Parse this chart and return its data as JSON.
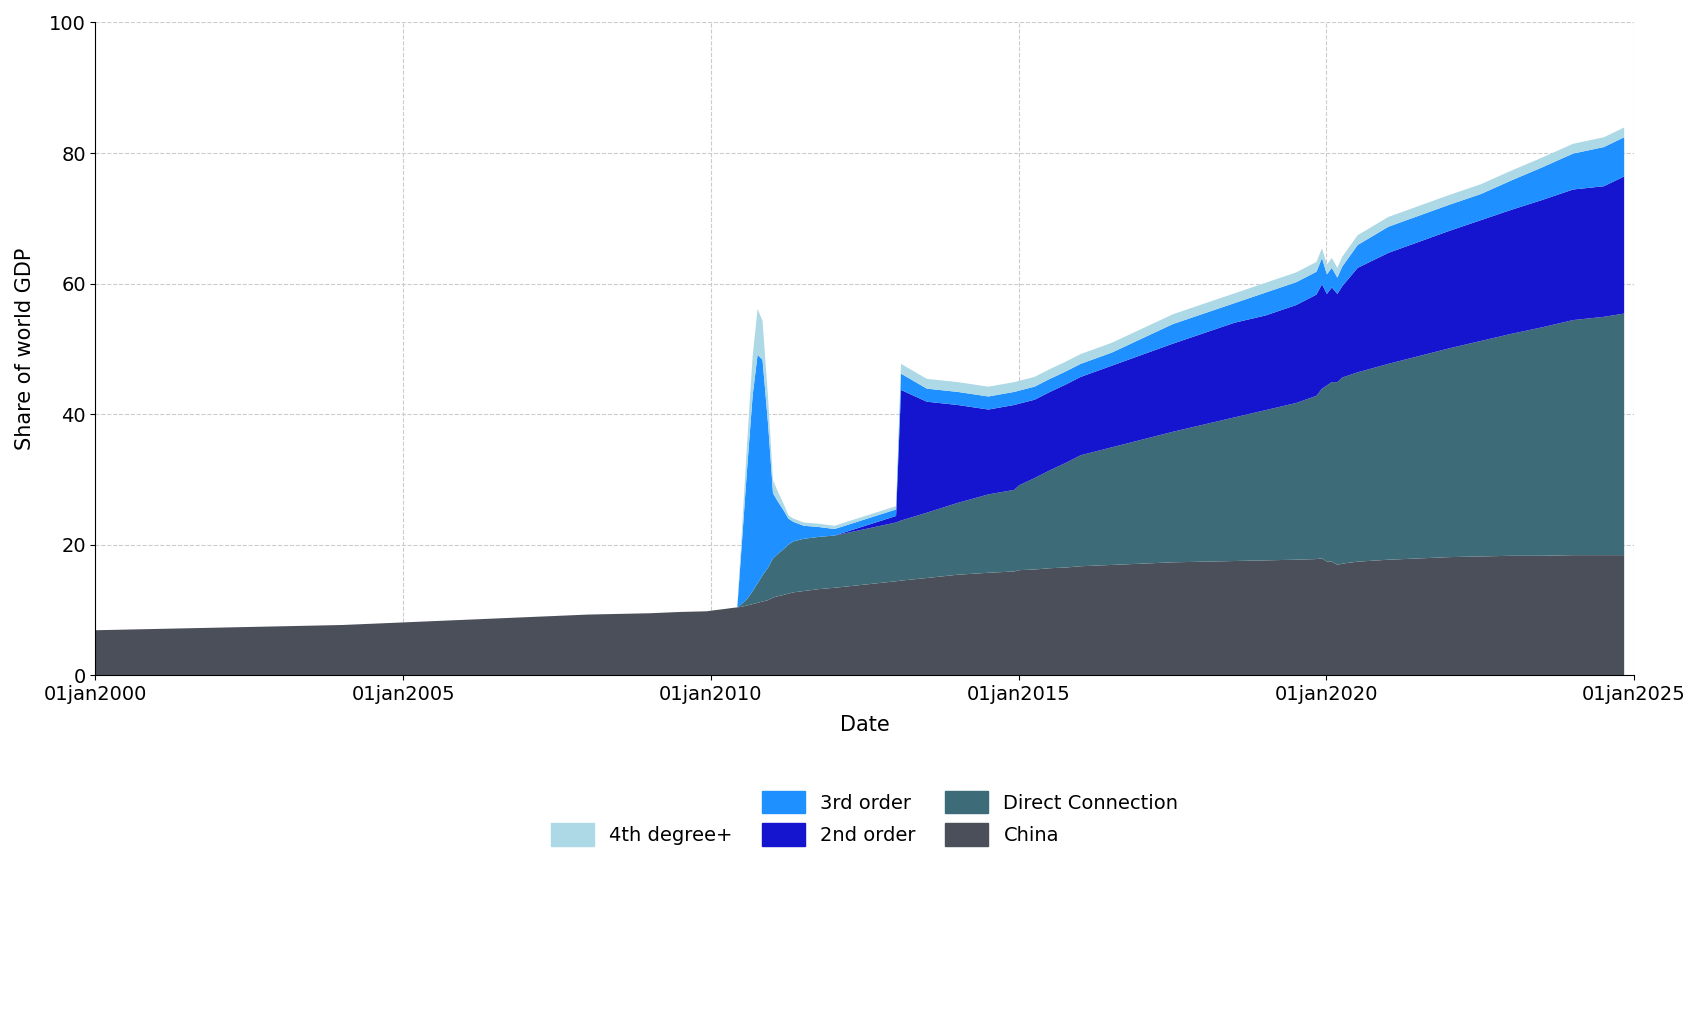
{
  "xlabel": "Date",
  "ylabel": "Share of world GDP",
  "ylim": [
    0,
    100
  ],
  "yticks": [
    0,
    20,
    40,
    60,
    80,
    100
  ],
  "colors": {
    "china": "#4b4f5a",
    "direct": "#3d6b78",
    "second": "#1515d0",
    "third": "#1e90ff",
    "fourth": "#add8e6"
  },
  "dates": [
    1999.9,
    2000.0,
    2000.5,
    2001.0,
    2001.5,
    2002.0,
    2002.5,
    2003.0,
    2003.5,
    2004.0,
    2004.5,
    2005.0,
    2005.5,
    2006.0,
    2006.5,
    2007.0,
    2007.5,
    2008.0,
    2008.5,
    2009.0,
    2009.5,
    2009.92,
    2010.0,
    2010.08,
    2010.17,
    2010.25,
    2010.33,
    2010.42,
    2010.5,
    2010.58,
    2010.67,
    2010.75,
    2010.83,
    2010.92,
    2011.0,
    2011.08,
    2011.17,
    2011.25,
    2011.33,
    2011.5,
    2011.75,
    2012.0,
    2012.5,
    2013.0,
    2013.08,
    2013.5,
    2014.0,
    2014.5,
    2014.92,
    2015.0,
    2015.25,
    2015.5,
    2015.75,
    2016.0,
    2016.5,
    2017.0,
    2017.5,
    2018.0,
    2018.5,
    2019.0,
    2019.5,
    2019.83,
    2019.92,
    2020.0,
    2020.08,
    2020.17,
    2020.25,
    2020.5,
    2021.0,
    2021.5,
    2022.0,
    2022.5,
    2023.0,
    2023.5,
    2024.0,
    2024.5,
    2024.83
  ],
  "china": [
    7.0,
    7.0,
    7.1,
    7.2,
    7.3,
    7.4,
    7.5,
    7.6,
    7.7,
    7.8,
    8.0,
    8.2,
    8.4,
    8.6,
    8.8,
    9.0,
    9.2,
    9.4,
    9.5,
    9.6,
    9.8,
    9.9,
    10.0,
    10.1,
    10.2,
    10.3,
    10.4,
    10.5,
    10.6,
    10.8,
    11.0,
    11.2,
    11.4,
    11.6,
    12.0,
    12.2,
    12.4,
    12.6,
    12.8,
    13.0,
    13.3,
    13.5,
    14.0,
    14.5,
    14.6,
    15.0,
    15.5,
    15.8,
    16.0,
    16.2,
    16.3,
    16.5,
    16.6,
    16.8,
    17.0,
    17.2,
    17.4,
    17.5,
    17.6,
    17.7,
    17.8,
    17.9,
    18.0,
    17.5,
    17.5,
    17.0,
    17.2,
    17.5,
    17.8,
    18.0,
    18.2,
    18.3,
    18.4,
    18.4,
    18.5,
    18.5,
    18.5
  ],
  "direct": [
    0.0,
    0.0,
    0.0,
    0.0,
    0.0,
    0.0,
    0.0,
    0.0,
    0.0,
    0.0,
    0.0,
    0.0,
    0.0,
    0.0,
    0.0,
    0.0,
    0.0,
    0.0,
    0.0,
    0.0,
    0.0,
    0.0,
    0.0,
    0.0,
    0.0,
    0.0,
    0.0,
    0.0,
    0.5,
    1.0,
    2.0,
    3.0,
    4.0,
    5.0,
    6.0,
    6.5,
    7.0,
    7.5,
    7.8,
    8.0,
    8.0,
    8.0,
    8.5,
    9.0,
    9.2,
    10.0,
    11.0,
    12.0,
    12.5,
    13.0,
    14.0,
    15.0,
    16.0,
    17.0,
    18.0,
    19.0,
    20.0,
    21.0,
    22.0,
    23.0,
    24.0,
    25.0,
    26.0,
    27.0,
    27.5,
    28.0,
    28.5,
    29.0,
    30.0,
    31.0,
    32.0,
    33.0,
    34.0,
    35.0,
    36.0,
    36.5,
    37.0
  ],
  "second": [
    0.0,
    0.0,
    0.0,
    0.0,
    0.0,
    0.0,
    0.0,
    0.0,
    0.0,
    0.0,
    0.0,
    0.0,
    0.0,
    0.0,
    0.0,
    0.0,
    0.0,
    0.0,
    0.0,
    0.0,
    0.0,
    0.0,
    0.0,
    0.0,
    0.0,
    0.0,
    0.0,
    0.0,
    0.0,
    0.0,
    0.0,
    0.0,
    0.0,
    0.0,
    0.0,
    0.0,
    0.0,
    0.0,
    0.0,
    0.0,
    0.0,
    0.0,
    0.5,
    1.0,
    20.0,
    17.0,
    15.0,
    13.0,
    13.0,
    12.5,
    12.0,
    12.0,
    12.0,
    12.0,
    12.5,
    13.0,
    13.5,
    14.0,
    14.5,
    14.5,
    15.0,
    15.5,
    16.0,
    14.0,
    14.5,
    13.5,
    14.0,
    16.0,
    17.0,
    17.5,
    18.0,
    18.5,
    19.0,
    19.5,
    20.0,
    20.0,
    21.0
  ],
  "third": [
    0.0,
    0.0,
    0.0,
    0.0,
    0.0,
    0.0,
    0.0,
    0.0,
    0.0,
    0.0,
    0.0,
    0.0,
    0.0,
    0.0,
    0.0,
    0.0,
    0.0,
    0.0,
    0.0,
    0.0,
    0.0,
    0.0,
    0.0,
    0.0,
    0.0,
    0.0,
    0.0,
    0.0,
    10.0,
    20.0,
    30.0,
    35.0,
    33.0,
    22.0,
    10.0,
    8.0,
    6.0,
    4.0,
    3.0,
    2.0,
    1.5,
    1.0,
    1.0,
    1.0,
    2.5,
    2.0,
    2.0,
    2.0,
    2.0,
    2.0,
    2.0,
    2.0,
    2.0,
    2.0,
    2.0,
    2.5,
    3.0,
    3.0,
    3.0,
    3.5,
    3.5,
    3.5,
    4.0,
    3.0,
    3.0,
    2.5,
    3.0,
    3.5,
    4.0,
    4.0,
    4.0,
    4.0,
    4.5,
    5.0,
    5.5,
    6.0,
    6.0
  ],
  "fourth": [
    0.0,
    0.0,
    0.0,
    0.0,
    0.0,
    0.0,
    0.0,
    0.0,
    0.0,
    0.0,
    0.0,
    0.0,
    0.0,
    0.0,
    0.0,
    0.0,
    0.0,
    0.0,
    0.0,
    0.0,
    0.0,
    0.0,
    0.0,
    0.0,
    0.0,
    0.0,
    0.0,
    0.0,
    2.0,
    4.0,
    6.0,
    7.0,
    6.0,
    4.0,
    2.0,
    1.5,
    1.0,
    0.5,
    0.5,
    0.5,
    0.5,
    0.5,
    0.5,
    0.5,
    1.5,
    1.5,
    1.5,
    1.5,
    1.5,
    1.5,
    1.5,
    1.5,
    1.5,
    1.5,
    1.5,
    1.5,
    1.5,
    1.5,
    1.5,
    1.5,
    1.5,
    1.5,
    1.5,
    1.5,
    1.5,
    1.5,
    1.5,
    1.5,
    1.5,
    1.5,
    1.5,
    1.5,
    1.5,
    1.5,
    1.5,
    1.5,
    1.5
  ]
}
